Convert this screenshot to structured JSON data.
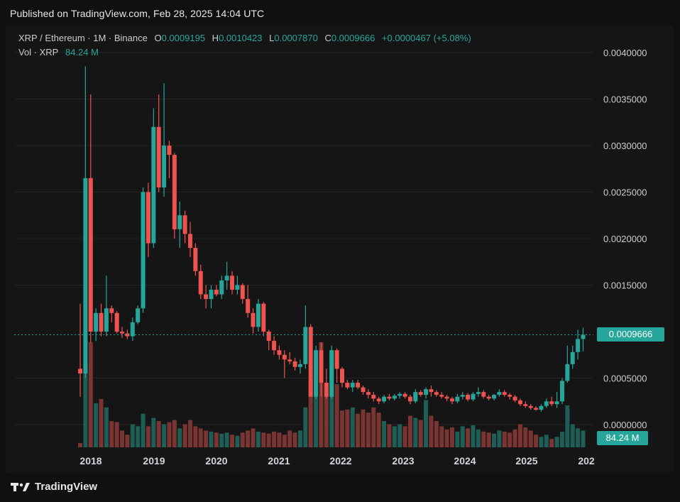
{
  "header": {
    "published": "Published on TradingView.com, Feb 28, 2025 14:04 UTC"
  },
  "legend": {
    "symbol": "XRP / Ethereum · 1M · Binance",
    "o_label": "O",
    "o_value": "0.0009195",
    "h_label": "H",
    "h_value": "0.0010423",
    "l_label": "L",
    "l_value": "0.0007870",
    "c_label": "C",
    "c_value": "0.0009666",
    "change": "+0.0000467 (+5.08%)",
    "vol_label": "Vol · XRP",
    "vol_value": "84.24 M"
  },
  "price_tag": "0.0009666",
  "volume_tag": "84.24 M",
  "brand": {
    "name": "TradingView"
  },
  "colors": {
    "up": "#26a69a",
    "down": "#ef5350",
    "background": "#151515",
    "grid": "#232323"
  },
  "chart_data": {
    "type": "candlestick",
    "interval": "1M",
    "ylim": [
      0,
      0.0042
    ],
    "y_ticks": [
      "0.0040000",
      "0.0035000",
      "0.0030000",
      "0.0025000",
      "0.0020000",
      "0.0015000",
      "0.0005000",
      "0.0000000"
    ],
    "x_ticks": [
      "2018",
      "2019",
      "2020",
      "2021",
      "2022",
      "2023",
      "2024",
      "2025",
      "202"
    ],
    "last_price": 0.0009666,
    "volume_ylim": [
      0,
      1
    ],
    "candles": [
      {
        "o": 0.0006,
        "h": 0.0013,
        "l": 0.0003,
        "c": 0.00055,
        "v": 0.04
      },
      {
        "o": 0.00055,
        "h": 0.00385,
        "l": 0.0005,
        "c": 0.00265,
        "v": 0.78
      },
      {
        "o": 0.00265,
        "h": 0.00355,
        "l": 0.00088,
        "c": 0.001,
        "v": 1.0
      },
      {
        "o": 0.001,
        "h": 0.00125,
        "l": 0.0009,
        "c": 0.0012,
        "v": 0.42
      },
      {
        "o": 0.0012,
        "h": 0.0013,
        "l": 0.00095,
        "c": 0.001,
        "v": 0.46
      },
      {
        "o": 0.001,
        "h": 0.0016,
        "l": 0.00095,
        "c": 0.00125,
        "v": 0.38
      },
      {
        "o": 0.00125,
        "h": 0.00128,
        "l": 0.0011,
        "c": 0.0012,
        "v": 0.25
      },
      {
        "o": 0.0012,
        "h": 0.00122,
        "l": 0.00098,
        "c": 0.001,
        "v": 0.24
      },
      {
        "o": 0.001,
        "h": 0.00105,
        "l": 0.00093,
        "c": 0.00098,
        "v": 0.16
      },
      {
        "o": 0.00098,
        "h": 0.00102,
        "l": 0.00092,
        "c": 0.00095,
        "v": 0.12
      },
      {
        "o": 0.00095,
        "h": 0.00115,
        "l": 0.0009,
        "c": 0.0011,
        "v": 0.22
      },
      {
        "o": 0.0011,
        "h": 0.00128,
        "l": 0.00108,
        "c": 0.00125,
        "v": 0.2
      },
      {
        "o": 0.00125,
        "h": 0.00255,
        "l": 0.0012,
        "c": 0.0025,
        "v": 0.32
      },
      {
        "o": 0.0025,
        "h": 0.0026,
        "l": 0.0018,
        "c": 0.00195,
        "v": 0.2
      },
      {
        "o": 0.00195,
        "h": 0.0034,
        "l": 0.0019,
        "c": 0.0032,
        "v": 0.28
      },
      {
        "o": 0.0032,
        "h": 0.00355,
        "l": 0.0025,
        "c": 0.00255,
        "v": 0.25
      },
      {
        "o": 0.00255,
        "h": 0.00367,
        "l": 0.00245,
        "c": 0.003,
        "v": 0.22
      },
      {
        "o": 0.003,
        "h": 0.00305,
        "l": 0.00265,
        "c": 0.0029,
        "v": 0.24
      },
      {
        "o": 0.0029,
        "h": 0.00292,
        "l": 0.002,
        "c": 0.0021,
        "v": 0.26
      },
      {
        "o": 0.0021,
        "h": 0.0024,
        "l": 0.0019,
        "c": 0.00225,
        "v": 0.18
      },
      {
        "o": 0.00225,
        "h": 0.0023,
        "l": 0.00195,
        "c": 0.00205,
        "v": 0.22
      },
      {
        "o": 0.00205,
        "h": 0.00218,
        "l": 0.0018,
        "c": 0.0019,
        "v": 0.26
      },
      {
        "o": 0.0019,
        "h": 0.00195,
        "l": 0.0016,
        "c": 0.00165,
        "v": 0.2
      },
      {
        "o": 0.00165,
        "h": 0.00172,
        "l": 0.00135,
        "c": 0.0014,
        "v": 0.18
      },
      {
        "o": 0.0014,
        "h": 0.0015,
        "l": 0.00125,
        "c": 0.00135,
        "v": 0.16
      },
      {
        "o": 0.00135,
        "h": 0.0015,
        "l": 0.00125,
        "c": 0.00145,
        "v": 0.15
      },
      {
        "o": 0.00145,
        "h": 0.0015,
        "l": 0.00138,
        "c": 0.0014,
        "v": 0.14
      },
      {
        "o": 0.0014,
        "h": 0.0016,
        "l": 0.00135,
        "c": 0.00155,
        "v": 0.13
      },
      {
        "o": 0.00155,
        "h": 0.00175,
        "l": 0.00145,
        "c": 0.0016,
        "v": 0.14
      },
      {
        "o": 0.0016,
        "h": 0.00165,
        "l": 0.0014,
        "c": 0.00145,
        "v": 0.12
      },
      {
        "o": 0.00145,
        "h": 0.0016,
        "l": 0.0014,
        "c": 0.0015,
        "v": 0.11
      },
      {
        "o": 0.0015,
        "h": 0.00152,
        "l": 0.0013,
        "c": 0.00135,
        "v": 0.14
      },
      {
        "o": 0.00135,
        "h": 0.0015,
        "l": 0.00115,
        "c": 0.0012,
        "v": 0.16
      },
      {
        "o": 0.0012,
        "h": 0.00125,
        "l": 0.00098,
        "c": 0.00105,
        "v": 0.18
      },
      {
        "o": 0.00105,
        "h": 0.00135,
        "l": 0.001,
        "c": 0.0013,
        "v": 0.15
      },
      {
        "o": 0.0013,
        "h": 0.00132,
        "l": 0.00095,
        "c": 0.001,
        "v": 0.14
      },
      {
        "o": 0.001,
        "h": 0.00102,
        "l": 0.0008,
        "c": 0.0009,
        "v": 0.13
      },
      {
        "o": 0.0009,
        "h": 0.00095,
        "l": 0.00075,
        "c": 0.0008,
        "v": 0.15
      },
      {
        "o": 0.0008,
        "h": 0.00085,
        "l": 0.0007,
        "c": 0.00075,
        "v": 0.14
      },
      {
        "o": 0.00075,
        "h": 0.0008,
        "l": 0.0005,
        "c": 0.0007,
        "v": 0.12
      },
      {
        "o": 0.0007,
        "h": 0.00078,
        "l": 0.00065,
        "c": 0.00068,
        "v": 0.16
      },
      {
        "o": 0.00068,
        "h": 0.00072,
        "l": 0.00058,
        "c": 0.00062,
        "v": 0.14
      },
      {
        "o": 0.00062,
        "h": 0.0007,
        "l": 0.00055,
        "c": 0.00065,
        "v": 0.16
      },
      {
        "o": 0.00065,
        "h": 0.00128,
        "l": 0.0006,
        "c": 0.00105,
        "v": 0.38
      },
      {
        "o": 0.00105,
        "h": 0.00108,
        "l": 0.0003,
        "c": 0.0003,
        "v": 0.65
      },
      {
        "o": 0.0003,
        "h": 0.00085,
        "l": 0.00028,
        "c": 0.0008,
        "v": 0.85
      },
      {
        "o": 0.0008,
        "h": 0.00088,
        "l": 0.0003,
        "c": 0.00045,
        "v": 1.0
      },
      {
        "o": 0.00045,
        "h": 0.0006,
        "l": 0.00028,
        "c": 0.0003,
        "v": 0.55
      },
      {
        "o": 0.0003,
        "h": 0.00085,
        "l": 0.00028,
        "c": 0.0008,
        "v": 0.9
      },
      {
        "o": 0.0008,
        "h": 0.00082,
        "l": 0.00045,
        "c": 0.0006,
        "v": 0.6
      },
      {
        "o": 0.0006,
        "h": 0.00062,
        "l": 0.0004,
        "c": 0.00045,
        "v": 0.35
      },
      {
        "o": 0.00045,
        "h": 0.00048,
        "l": 0.00038,
        "c": 0.0004,
        "v": 0.36
      },
      {
        "o": 0.0004,
        "h": 0.00048,
        "l": 0.00035,
        "c": 0.00045,
        "v": 0.38
      },
      {
        "o": 0.00045,
        "h": 0.00048,
        "l": 0.00038,
        "c": 0.0004,
        "v": 0.32
      },
      {
        "o": 0.0004,
        "h": 0.00042,
        "l": 0.00032,
        "c": 0.00035,
        "v": 0.36
      },
      {
        "o": 0.00035,
        "h": 0.00038,
        "l": 0.00028,
        "c": 0.00032,
        "v": 0.33
      },
      {
        "o": 0.00032,
        "h": 0.00035,
        "l": 0.00025,
        "c": 0.00028,
        "v": 0.38
      },
      {
        "o": 0.00028,
        "h": 0.0003,
        "l": 0.00022,
        "c": 0.00025,
        "v": 0.33
      },
      {
        "o": 0.00025,
        "h": 0.00032,
        "l": 0.00023,
        "c": 0.0003,
        "v": 0.25
      },
      {
        "o": 0.0003,
        "h": 0.00033,
        "l": 0.00026,
        "c": 0.00028,
        "v": 0.22
      },
      {
        "o": 0.00028,
        "h": 0.00033,
        "l": 0.00026,
        "c": 0.00031,
        "v": 0.2
      },
      {
        "o": 0.00031,
        "h": 0.00035,
        "l": 0.00028,
        "c": 0.00033,
        "v": 0.22
      },
      {
        "o": 0.00033,
        "h": 0.00035,
        "l": 0.00028,
        "c": 0.0003,
        "v": 0.2
      },
      {
        "o": 0.0003,
        "h": 0.00032,
        "l": 0.00022,
        "c": 0.00025,
        "v": 0.3
      },
      {
        "o": 0.00025,
        "h": 0.00038,
        "l": 0.00023,
        "c": 0.00035,
        "v": 0.28
      },
      {
        "o": 0.00035,
        "h": 0.00037,
        "l": 0.0003,
        "c": 0.00032,
        "v": 0.26
      },
      {
        "o": 0.00032,
        "h": 0.0004,
        "l": 0.00028,
        "c": 0.00038,
        "v": 0.45
      },
      {
        "o": 0.00038,
        "h": 0.00042,
        "l": 0.0003,
        "c": 0.00035,
        "v": 0.3
      },
      {
        "o": 0.00035,
        "h": 0.00037,
        "l": 0.0003,
        "c": 0.00032,
        "v": 0.25
      },
      {
        "o": 0.00032,
        "h": 0.00035,
        "l": 0.00028,
        "c": 0.0003,
        "v": 0.2
      },
      {
        "o": 0.0003,
        "h": 0.00032,
        "l": 0.00025,
        "c": 0.00028,
        "v": 0.17
      },
      {
        "o": 0.00028,
        "h": 0.0003,
        "l": 0.00022,
        "c": 0.00025,
        "v": 0.19
      },
      {
        "o": 0.00025,
        "h": 0.00033,
        "l": 0.00023,
        "c": 0.0003,
        "v": 0.15
      },
      {
        "o": 0.0003,
        "h": 0.00035,
        "l": 0.00027,
        "c": 0.00032,
        "v": 0.2
      },
      {
        "o": 0.00032,
        "h": 0.00034,
        "l": 0.00025,
        "c": 0.00027,
        "v": 0.18
      },
      {
        "o": 0.00027,
        "h": 0.00035,
        "l": 0.00025,
        "c": 0.00033,
        "v": 0.21
      },
      {
        "o": 0.00033,
        "h": 0.0004,
        "l": 0.0003,
        "c": 0.00035,
        "v": 0.17
      },
      {
        "o": 0.00035,
        "h": 0.00037,
        "l": 0.00028,
        "c": 0.0003,
        "v": 0.15
      },
      {
        "o": 0.0003,
        "h": 0.00032,
        "l": 0.00026,
        "c": 0.00028,
        "v": 0.14
      },
      {
        "o": 0.00028,
        "h": 0.00033,
        "l": 0.00026,
        "c": 0.00032,
        "v": 0.13
      },
      {
        "o": 0.00032,
        "h": 0.00038,
        "l": 0.0003,
        "c": 0.00035,
        "v": 0.16
      },
      {
        "o": 0.00035,
        "h": 0.00037,
        "l": 0.0003,
        "c": 0.00032,
        "v": 0.15
      },
      {
        "o": 0.00032,
        "h": 0.00034,
        "l": 0.00027,
        "c": 0.0003,
        "v": 0.14
      },
      {
        "o": 0.0003,
        "h": 0.00032,
        "l": 0.00024,
        "c": 0.00026,
        "v": 0.17
      },
      {
        "o": 0.00026,
        "h": 0.00028,
        "l": 0.0002,
        "c": 0.00022,
        "v": 0.22
      },
      {
        "o": 0.00022,
        "h": 0.00025,
        "l": 0.00018,
        "c": 0.0002,
        "v": 0.19
      },
      {
        "o": 0.0002,
        "h": 0.00022,
        "l": 0.00016,
        "c": 0.00018,
        "v": 0.16
      },
      {
        "o": 0.00018,
        "h": 0.0002,
        "l": 0.00015,
        "c": 0.00016,
        "v": 0.12
      },
      {
        "o": 0.00016,
        "h": 0.00022,
        "l": 0.00014,
        "c": 0.0002,
        "v": 0.1
      },
      {
        "o": 0.0002,
        "h": 0.00028,
        "l": 0.00018,
        "c": 0.00025,
        "v": 0.12
      },
      {
        "o": 0.00025,
        "h": 0.0003,
        "l": 0.0002,
        "c": 0.00022,
        "v": 0.08
      },
      {
        "o": 0.00022,
        "h": 0.00035,
        "l": 0.00018,
        "c": 0.00025,
        "v": 0.1
      },
      {
        "o": 0.00025,
        "h": 0.0005,
        "l": 0.00022,
        "c": 0.00047,
        "v": 0.15
      },
      {
        "o": 0.00047,
        "h": 0.00085,
        "l": 0.00045,
        "c": 0.00065,
        "v": 0.4
      },
      {
        "o": 0.00065,
        "h": 0.00085,
        "l": 0.0006,
        "c": 0.00078,
        "v": 0.22
      },
      {
        "o": 0.00078,
        "h": 0.00102,
        "l": 0.0007,
        "c": 0.00092,
        "v": 0.18
      },
      {
        "o": 0.00092,
        "h": 0.0010423,
        "l": 0.000787,
        "c": 0.0009666,
        "v": 0.16
      }
    ]
  }
}
